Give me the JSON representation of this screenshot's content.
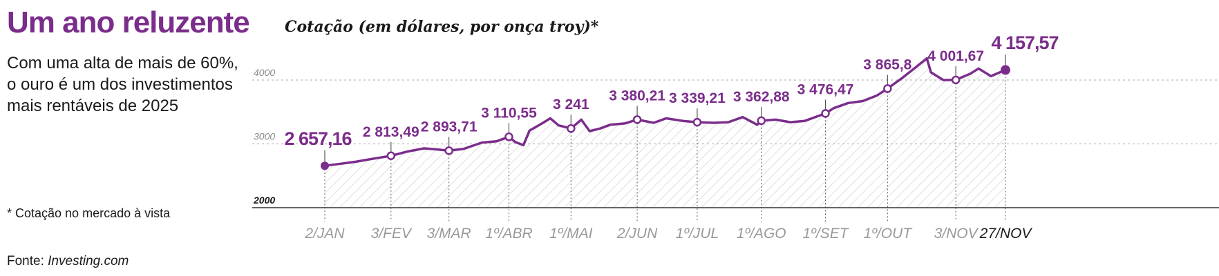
{
  "headline": "Um ano reluzente",
  "deck": "Com uma alta de mais de 60%, o ouro é um dos investimentos mais rentáveis de 2025",
  "footnote": "* Cotação no mercado à vista",
  "source": {
    "prefix": "Fonte: ",
    "name": "Investing.com"
  },
  "colors": {
    "accent": "#7b2d8b",
    "grid": "#bbbbbb",
    "hatch": "#cfcfcf"
  },
  "chart_data": {
    "type": "line",
    "title": "Cotação (em dólares, por onça troy)*",
    "ylim": [
      2000,
      4300
    ],
    "yticks": [
      "4000",
      "3000",
      "2000"
    ],
    "ytick_values": [
      4000,
      3000,
      2000
    ],
    "grid": true,
    "x": [
      "2025-01-02",
      "2025-01-10",
      "2025-01-17",
      "2025-01-24",
      "2025-02-03",
      "2025-02-11",
      "2025-02-19",
      "2025-02-26",
      "2025-03-03",
      "2025-03-10",
      "2025-03-19",
      "2025-03-26",
      "2025-04-01",
      "2025-04-04",
      "2025-04-08",
      "2025-04-11",
      "2025-04-17",
      "2025-04-21",
      "2025-04-25",
      "2025-05-01",
      "2025-05-06",
      "2025-05-10",
      "2025-05-15",
      "2025-05-20",
      "2025-05-27",
      "2025-06-02",
      "2025-06-10",
      "2025-06-16",
      "2025-06-24",
      "2025-07-01",
      "2025-07-09",
      "2025-07-16",
      "2025-07-23",
      "2025-07-30",
      "2025-08-01",
      "2025-08-08",
      "2025-08-15",
      "2025-08-22",
      "2025-09-01",
      "2025-09-05",
      "2025-09-12",
      "2025-09-19",
      "2025-09-26",
      "2025-10-01",
      "2025-10-08",
      "2025-10-15",
      "2025-10-20",
      "2025-10-22",
      "2025-10-28",
      "2025-11-03",
      "2025-11-10",
      "2025-11-14",
      "2025-11-20",
      "2025-11-27"
    ],
    "values": [
      2657.16,
      2690,
      2720,
      2760,
      2813.49,
      2880,
      2930,
      2910,
      2893.71,
      2920,
      3020,
      3040,
      3110.55,
      3030,
      2980,
      3210,
      3320,
      3400,
      3290,
      3241,
      3380,
      3200,
      3240,
      3300,
      3320,
      3380.21,
      3330,
      3400,
      3360,
      3339.21,
      3330,
      3340,
      3420,
      3300,
      3362.88,
      3380,
      3340,
      3360,
      3476.47,
      3560,
      3640,
      3670,
      3760,
      3865.8,
      4030,
      4210,
      4340,
      4120,
      4000,
      4001.67,
      4100,
      4180,
      4060,
      4157.57
    ],
    "series_name": "",
    "x_labels": [
      {
        "date": "2025-01-02",
        "label": "2/JAN"
      },
      {
        "date": "2025-02-03",
        "label": "3/FEV"
      },
      {
        "date": "2025-03-03",
        "label": "3/MAR"
      },
      {
        "date": "2025-04-01",
        "label": "1º/ABR"
      },
      {
        "date": "2025-05-01",
        "label": "1º/MAI"
      },
      {
        "date": "2025-06-02",
        "label": "2/JUN"
      },
      {
        "date": "2025-07-01",
        "label": "1º/JUL"
      },
      {
        "date": "2025-08-01",
        "label": "1º/AGO"
      },
      {
        "date": "2025-09-01",
        "label": "1º/SET"
      },
      {
        "date": "2025-10-01",
        "label": "1º/OUT"
      },
      {
        "date": "2025-11-03",
        "label": "3/NOV"
      },
      {
        "date": "2025-11-27",
        "label": "27/NOV"
      }
    ],
    "annotations": [
      {
        "date": "2025-01-02",
        "value": 2657.16,
        "label": "2 657,16"
      },
      {
        "date": "2025-02-03",
        "value": 2813.49,
        "label": "2 813,49"
      },
      {
        "date": "2025-03-03",
        "value": 2893.71,
        "label": "2 893,71"
      },
      {
        "date": "2025-04-01",
        "value": 3110.55,
        "label": "3 110,55"
      },
      {
        "date": "2025-05-01",
        "value": 3241,
        "label": "3 241"
      },
      {
        "date": "2025-06-02",
        "value": 3380.21,
        "label": "3 380,21"
      },
      {
        "date": "2025-07-01",
        "value": 3339.21,
        "label": "3 339,21"
      },
      {
        "date": "2025-08-01",
        "value": 3362.88,
        "label": "3 362,88"
      },
      {
        "date": "2025-09-01",
        "value": 3476.47,
        "label": "3 476,47"
      },
      {
        "date": "2025-10-01",
        "value": 3865.8,
        "label": "3 865,8"
      },
      {
        "date": "2025-11-03",
        "value": 4001.67,
        "label": "4 001,67"
      },
      {
        "date": "2025-11-27",
        "value": 4157.57,
        "label": "4 157,57"
      }
    ]
  }
}
